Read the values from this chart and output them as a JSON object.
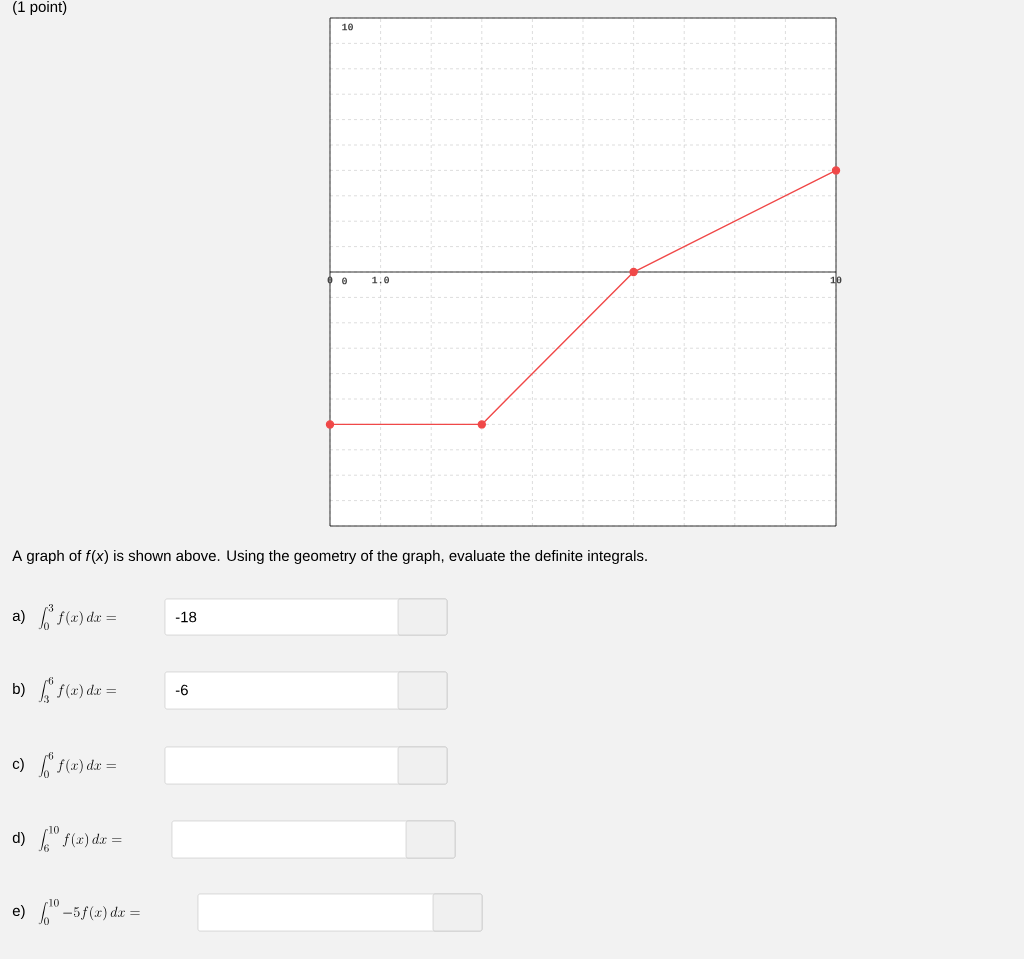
{
  "chart_data": {
    "type": "line",
    "x": [
      0,
      3,
      6,
      10
    ],
    "values": [
      -6,
      -6,
      0,
      4
    ],
    "color": "#f04848",
    "marker": "circle",
    "xlim": [
      0,
      10
    ],
    "ylim": [
      -10,
      10
    ],
    "xticks": [
      {
        "value": 0,
        "label": "0"
      },
      {
        "value": 1,
        "label": "1.0"
      },
      {
        "value": 10,
        "label": "10"
      }
    ],
    "yticks": [
      0,
      10
    ],
    "grid": true,
    "annotations": [
      "(1 point)",
      "A graph of *f*(*x*) is shown above. Using the geometry of the graph, evaluate the definite integrals.",
      "a)",
      "\\int_0^3 f(x)\\,dx =",
      "-18",
      "b)",
      "\\int_3^6 f(x)\\,dx =",
      "-6",
      "c)",
      "\\int_0^6 f(x)\\,dx =",
      "d)",
      "\\int_6^{10} f(x)\\,dx =",
      "e)",
      "\\int_0^{10} -5f(x)\\,dx ="
    ]
  }
}
